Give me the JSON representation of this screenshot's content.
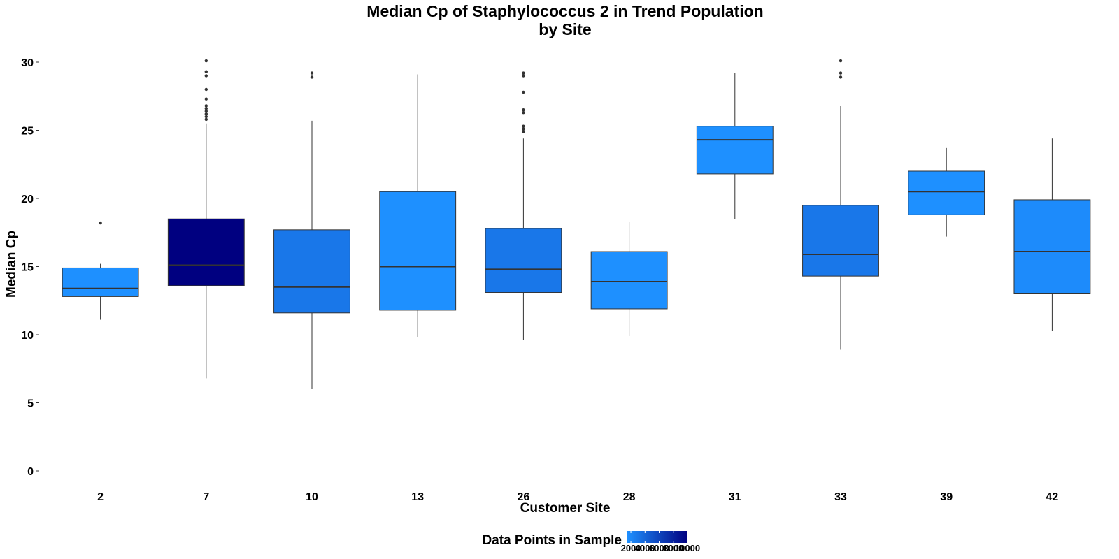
{
  "chart_data": {
    "type": "boxplot",
    "title": "Median Cp of Staphylococcus 2 in Trend Population",
    "subtitle": "by Site",
    "xlabel": "Customer Site",
    "ylabel": "Median Cp",
    "ylim": [
      -1,
      31
    ],
    "yticks": [
      0,
      5,
      10,
      15,
      20,
      25,
      30
    ],
    "grid": false,
    "categories": [
      "2",
      "7",
      "10",
      "13",
      "26",
      "28",
      "31",
      "33",
      "39",
      "42"
    ],
    "boxes": [
      {
        "site": "2",
        "whisker_low": 11.1,
        "q1": 12.8,
        "median": 13.4,
        "q3": 14.9,
        "whisker_high": 15.2,
        "outliers": [
          18.2
        ],
        "count": 1500
      },
      {
        "site": "7",
        "whisker_low": 6.8,
        "q1": 13.6,
        "median": 15.1,
        "q3": 18.5,
        "whisker_high": 25.5,
        "outliers": [
          25.8,
          26.0,
          26.2,
          26.4,
          26.6,
          26.8,
          27.3,
          28.0,
          29.0,
          29.3,
          30.1
        ],
        "count": 10000
      },
      {
        "site": "10",
        "whisker_low": 6.0,
        "q1": 11.6,
        "median": 13.5,
        "q3": 17.7,
        "whisker_high": 25.7,
        "outliers": [
          28.9,
          29.2
        ],
        "count": 3000
      },
      {
        "site": "13",
        "whisker_low": 9.8,
        "q1": 11.8,
        "median": 15.0,
        "q3": 20.5,
        "whisker_high": 29.1,
        "outliers": [],
        "count": 1500
      },
      {
        "site": "26",
        "whisker_low": 9.6,
        "q1": 13.1,
        "median": 14.8,
        "q3": 17.8,
        "whisker_high": 24.4,
        "outliers": [
          24.9,
          25.1,
          25.3,
          26.3,
          26.5,
          27.8,
          29.0,
          29.2
        ],
        "count": 3000
      },
      {
        "site": "28",
        "whisker_low": 9.9,
        "q1": 11.9,
        "median": 13.9,
        "q3": 16.1,
        "whisker_high": 18.3,
        "outliers": [],
        "count": 1500
      },
      {
        "site": "31",
        "whisker_low": 18.5,
        "q1": 21.8,
        "median": 24.3,
        "q3": 25.3,
        "whisker_high": 29.2,
        "outliers": [],
        "count": 1500
      },
      {
        "site": "33",
        "whisker_low": 8.9,
        "q1": 14.3,
        "median": 15.9,
        "q3": 19.5,
        "whisker_high": 26.8,
        "outliers": [
          28.9,
          29.2,
          30.1
        ],
        "count": 3000
      },
      {
        "site": "39",
        "whisker_low": 17.2,
        "q1": 18.8,
        "median": 20.5,
        "q3": 22.0,
        "whisker_high": 23.7,
        "outliers": [],
        "count": 1500
      },
      {
        "site": "42",
        "whisker_low": 10.3,
        "q1": 13.0,
        "median": 16.1,
        "q3": 19.9,
        "whisker_high": 24.4,
        "outliers": [],
        "count": 1800
      }
    ],
    "legend": {
      "title": "Data Points in Sample",
      "placement": "bottom",
      "type": "gradient",
      "range": [
        1500,
        10000
      ],
      "breaks": [
        2000,
        4000,
        6000,
        8000,
        10000
      ],
      "break_labels": [
        "2000",
        "4000",
        "6000",
        "8000",
        "10000"
      ],
      "low_color": "#1e90ff",
      "high_color": "#000080"
    },
    "colors": {
      "whisker": "#333333",
      "median": "#333333",
      "outline": "#333333",
      "outlier": "#333333"
    }
  }
}
